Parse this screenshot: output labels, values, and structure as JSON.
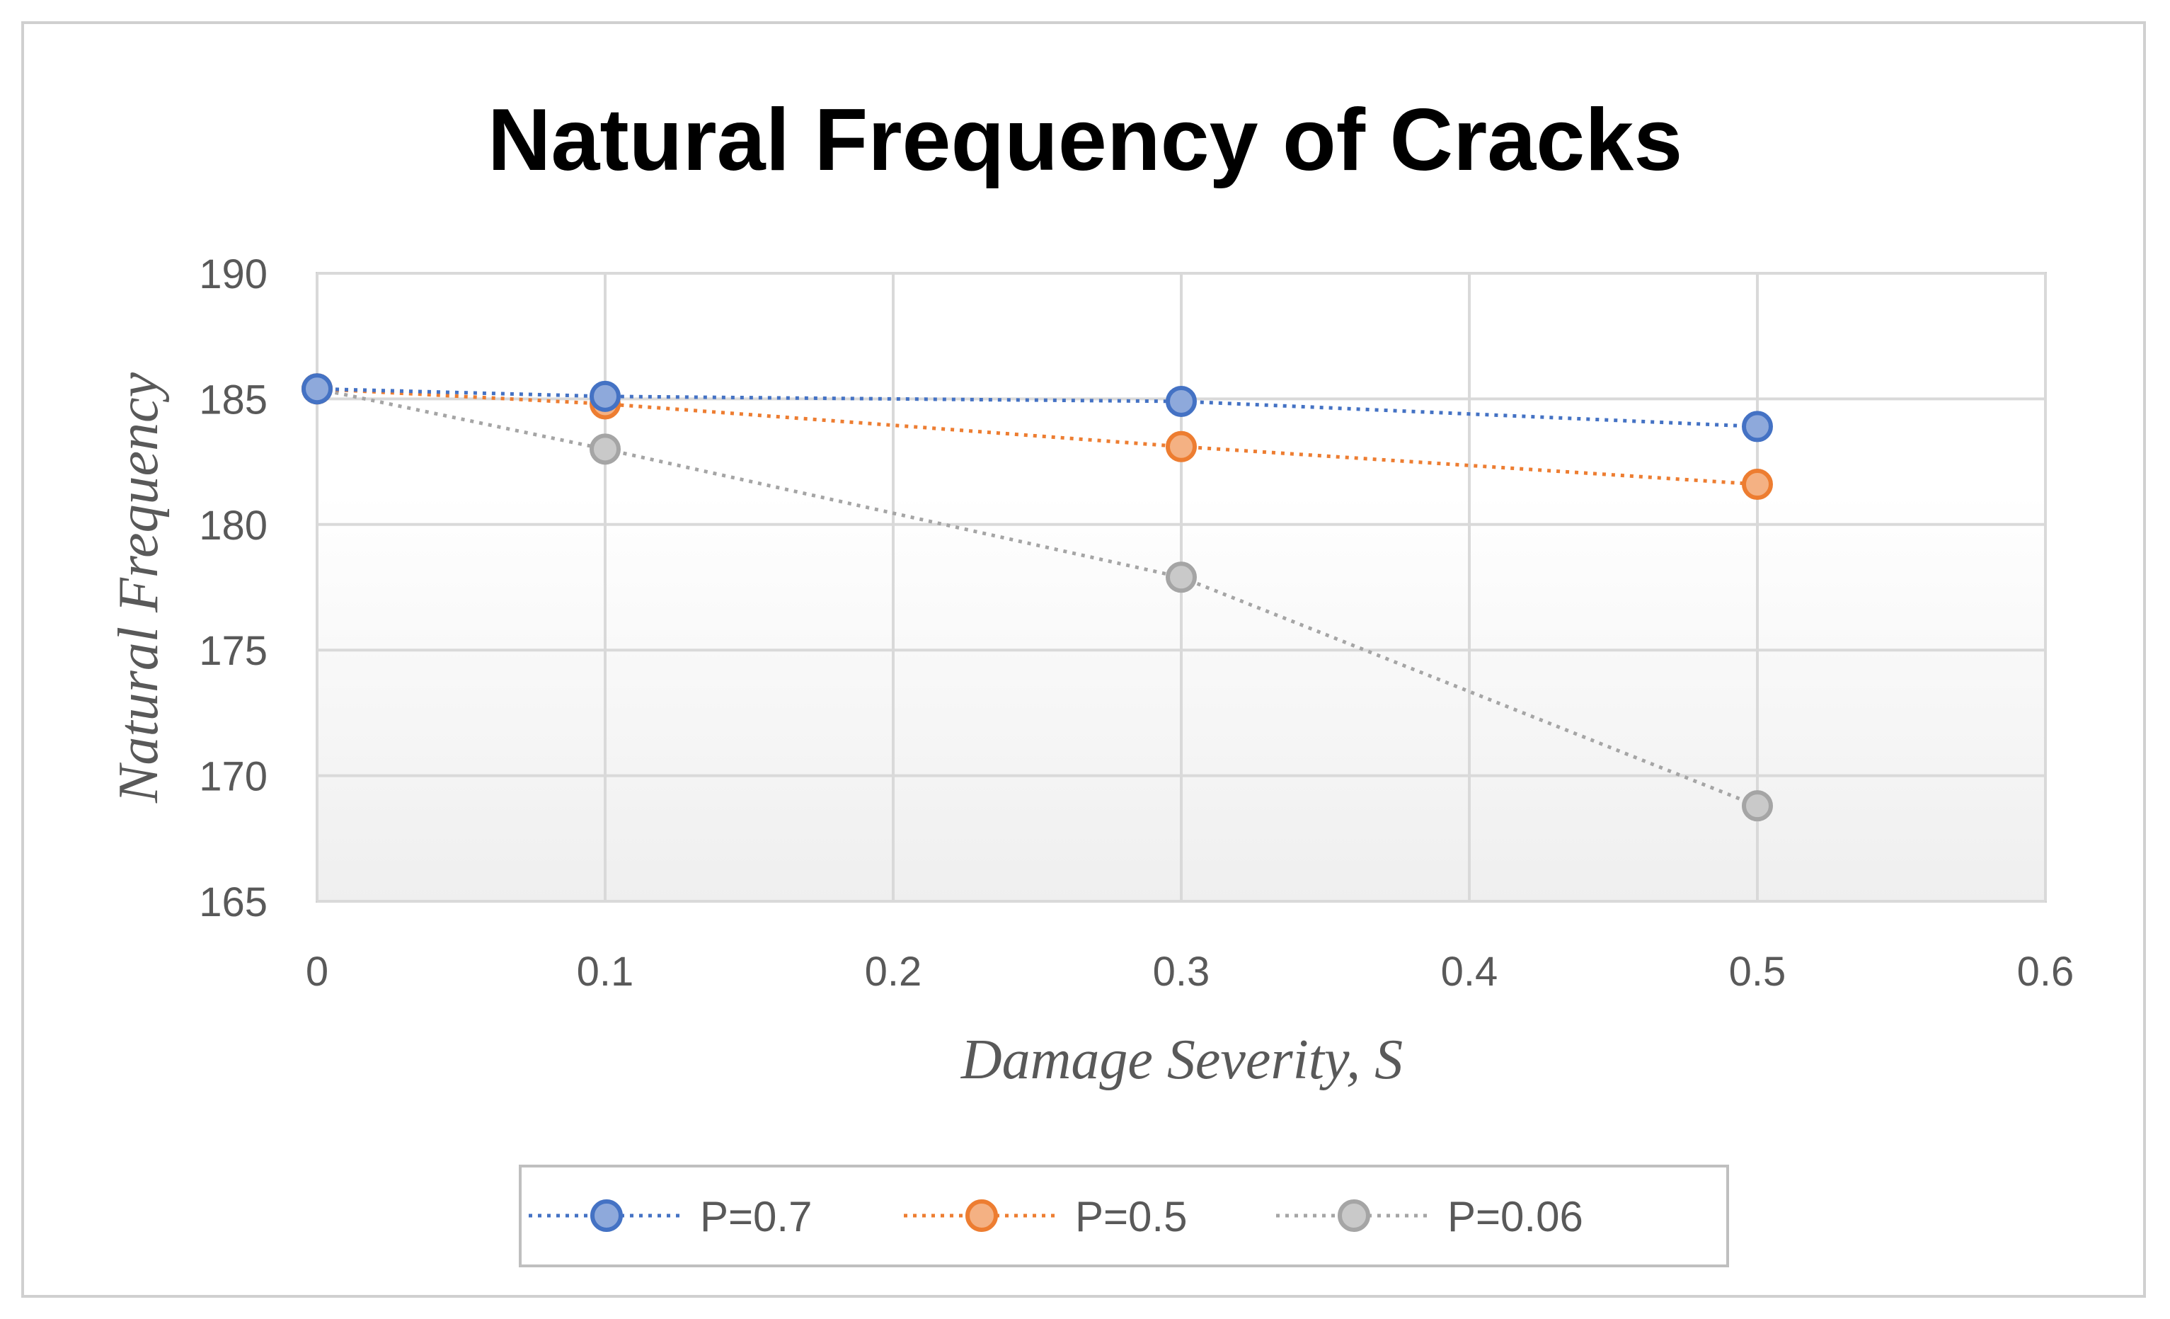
{
  "chart_data": {
    "type": "line",
    "title": "Natural Frequency of Cracks",
    "xlabel": "Damage Severity, S",
    "ylabel": "Natural Frequency",
    "xlim": [
      0,
      0.6
    ],
    "ylim": [
      165,
      190
    ],
    "x_ticks": [
      "0",
      "0.1",
      "0.2",
      "0.3",
      "0.4",
      "0.5",
      "0.6"
    ],
    "y_ticks": [
      "165",
      "170",
      "175",
      "180",
      "185",
      "190"
    ],
    "x": [
      0,
      0.1,
      0.3,
      0.5
    ],
    "grid": true,
    "legend_position": "bottom",
    "series": [
      {
        "name": "P=0.7",
        "values": [
          185.4,
          185.1,
          184.9,
          183.9
        ],
        "color": "#4472C4",
        "fill": "#8EA9DB"
      },
      {
        "name": "P=0.5",
        "values": [
          185.4,
          184.8,
          183.1,
          181.6
        ],
        "color": "#ED7D31",
        "fill": "#F4B183"
      },
      {
        "name": "P=0.06",
        "values": [
          185.4,
          183.0,
          177.9,
          168.8
        ],
        "color": "#A5A5A5",
        "fill": "#C9C9C9"
      }
    ]
  }
}
